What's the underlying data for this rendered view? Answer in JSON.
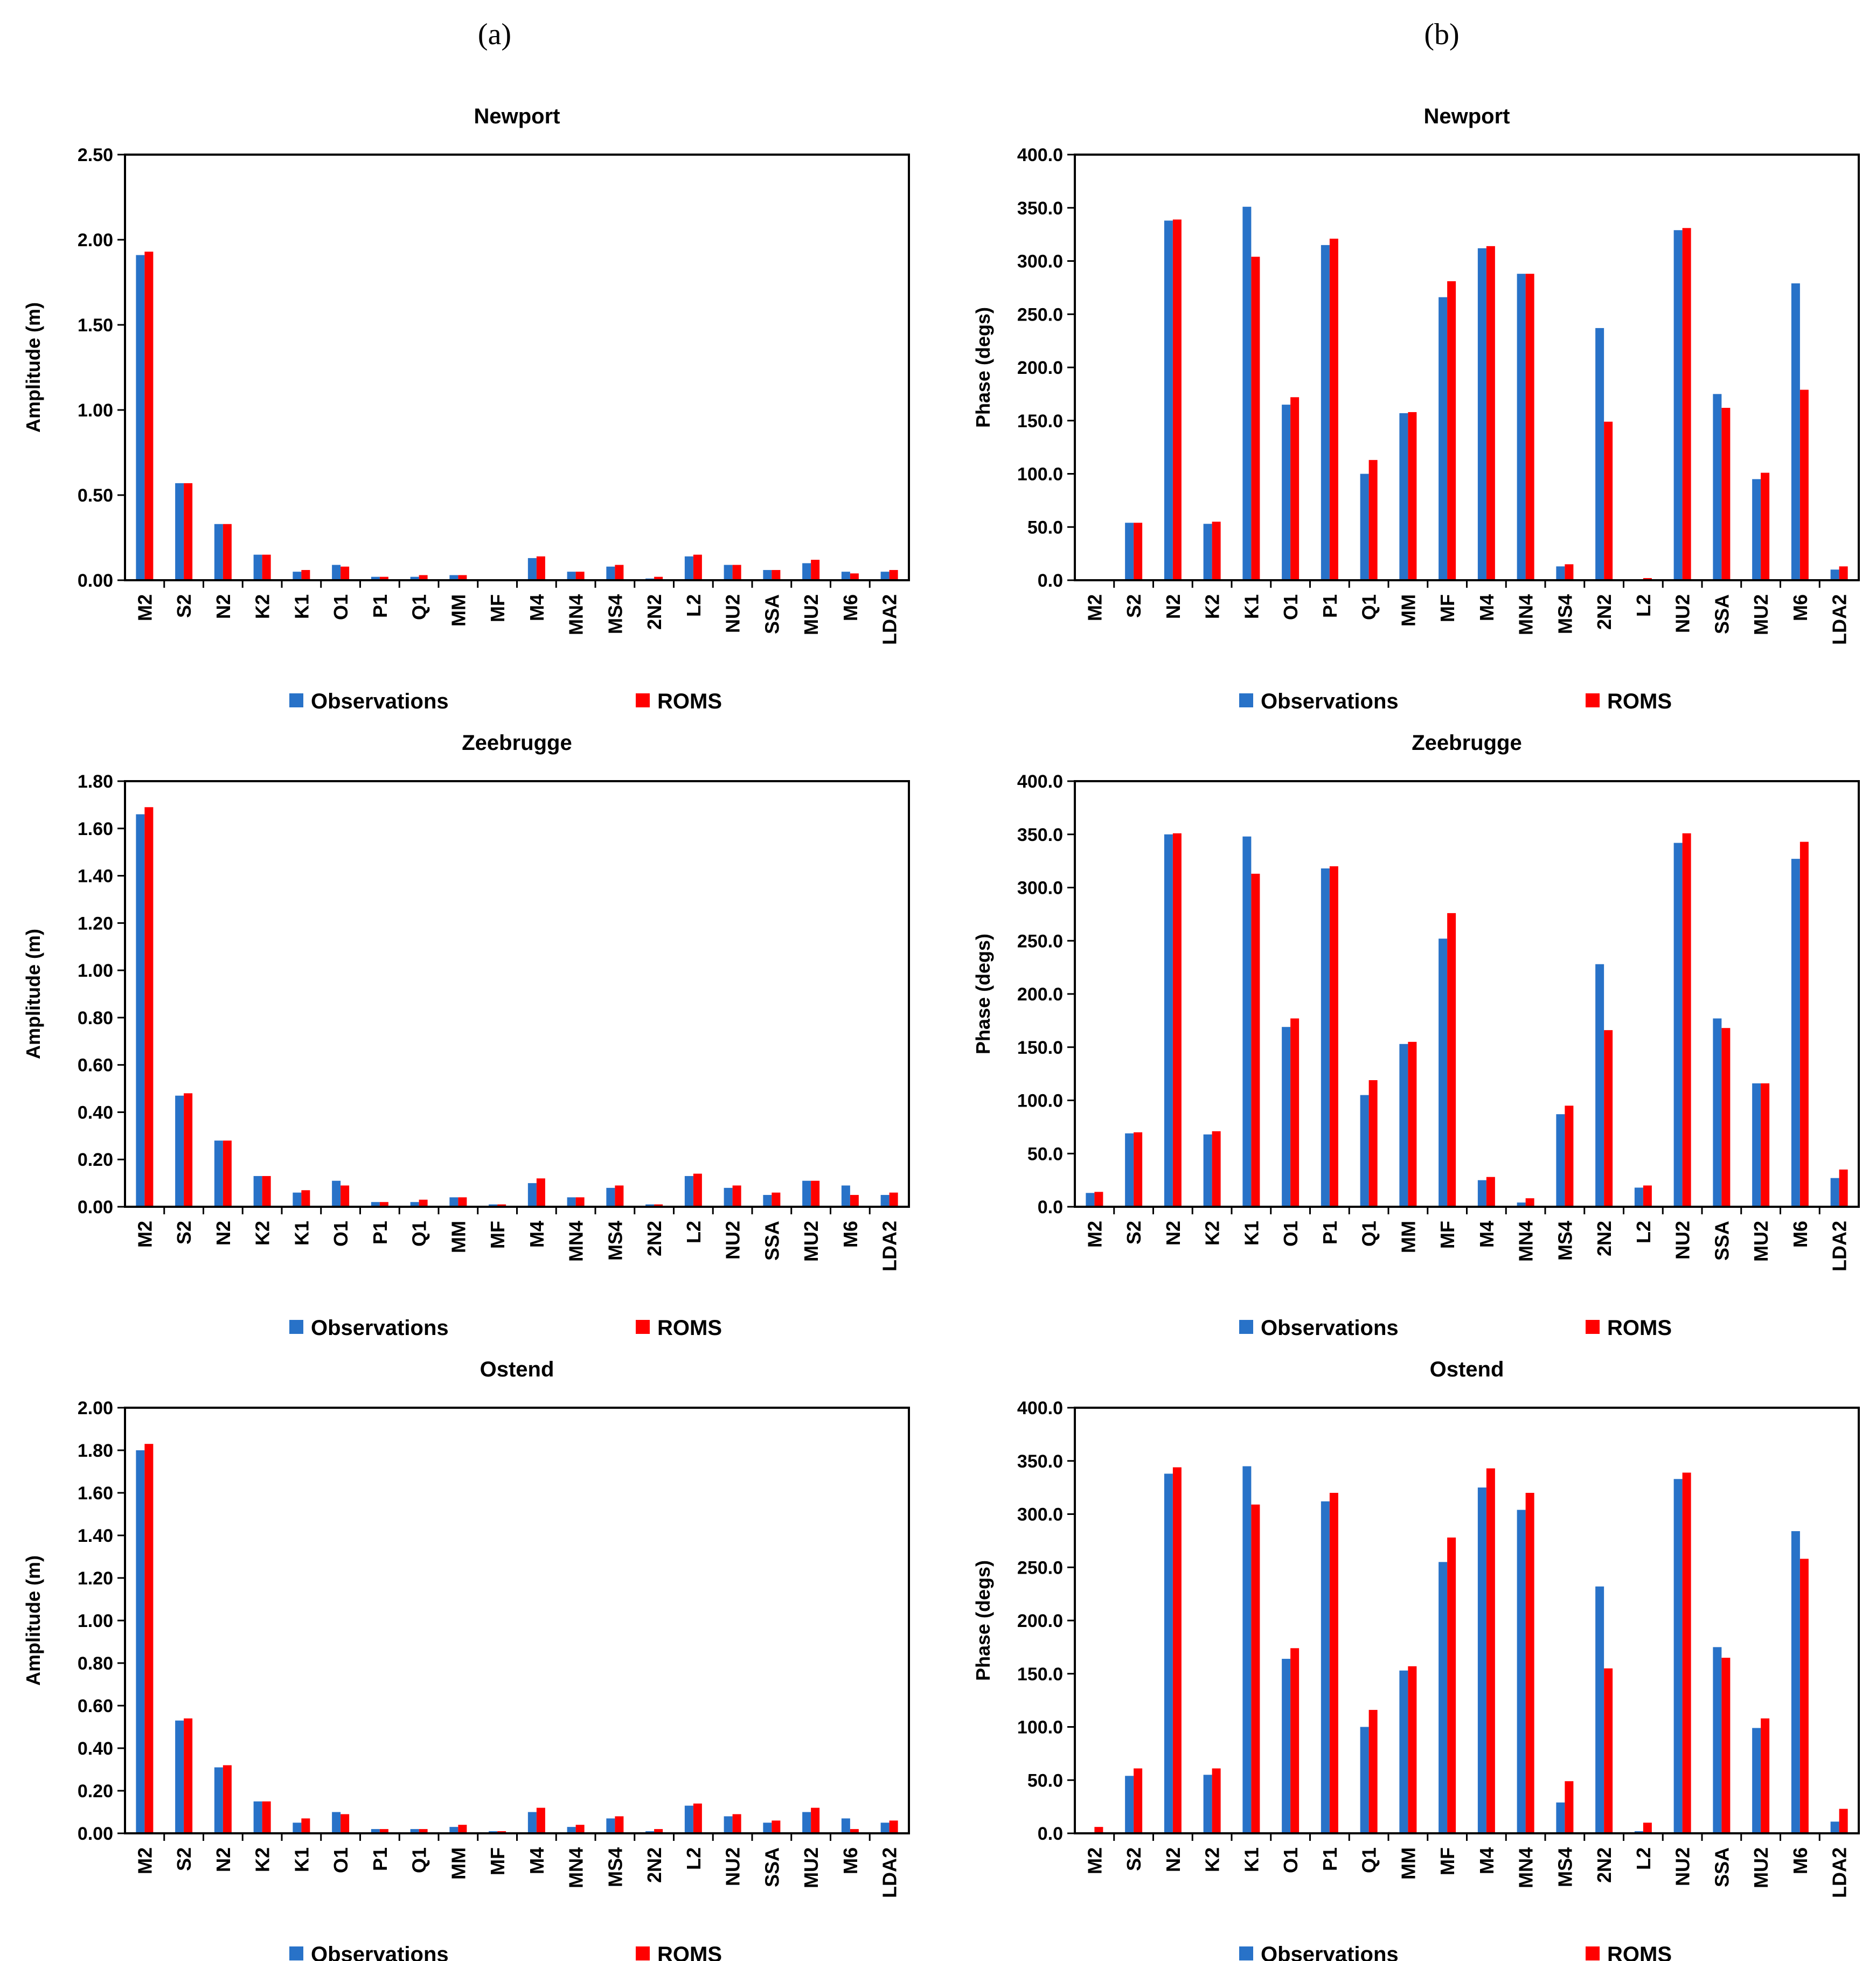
{
  "panel_labels": [
    "(a)",
    "(b)"
  ],
  "colors": {
    "observations": "#2872C8",
    "roms": "#FF0000",
    "axis": "#000000"
  },
  "legend": [
    "Observations",
    "ROMS"
  ],
  "chart_data": [
    {
      "type": "bar",
      "panel": "a",
      "title": "Newport",
      "xlabel": "",
      "ylabel": "Amplitude (m)",
      "ylim": [
        0,
        2.5
      ],
      "ytick_step": 0.5,
      "tick_decimals": 2,
      "categories": [
        "M2",
        "S2",
        "N2",
        "K2",
        "K1",
        "O1",
        "P1",
        "Q1",
        "MM",
        "MF",
        "M4",
        "MN4",
        "MS4",
        "2N2",
        "L2",
        "NU2",
        "SSA",
        "MU2",
        "M6",
        "LDA2"
      ],
      "series": [
        {
          "name": "Observations",
          "values": [
            1.91,
            0.57,
            0.33,
            0.15,
            0.05,
            0.09,
            0.02,
            0.02,
            0.03,
            0.0,
            0.13,
            0.05,
            0.08,
            0.01,
            0.14,
            0.09,
            0.06,
            0.1,
            0.05,
            0.05
          ]
        },
        {
          "name": "ROMS",
          "values": [
            1.93,
            0.57,
            0.33,
            0.15,
            0.06,
            0.08,
            0.02,
            0.03,
            0.03,
            0.0,
            0.14,
            0.05,
            0.09,
            0.02,
            0.15,
            0.09,
            0.06,
            0.12,
            0.04,
            0.06
          ]
        }
      ]
    },
    {
      "type": "bar",
      "panel": "b",
      "title": "Newport",
      "xlabel": "",
      "ylabel": "Phase (degs)",
      "ylim": [
        0,
        400
      ],
      "ytick_step": 50,
      "tick_decimals": 1,
      "categories": [
        "M2",
        "S2",
        "N2",
        "K2",
        "K1",
        "O1",
        "P1",
        "Q1",
        "MM",
        "MF",
        "M4",
        "MN4",
        "MS4",
        "2N2",
        "L2",
        "NU2",
        "SSA",
        "MU2",
        "M6",
        "LDA2"
      ],
      "series": [
        {
          "name": "Observations",
          "values": [
            0,
            54,
            338,
            53,
            351,
            165,
            315,
            100,
            157,
            266,
            312,
            288,
            13,
            237,
            0,
            329,
            175,
            95,
            279,
            10
          ]
        },
        {
          "name": "ROMS",
          "values": [
            0,
            54,
            339,
            55,
            304,
            172,
            321,
            113,
            158,
            281,
            314,
            288,
            15,
            149,
            2,
            331,
            162,
            101,
            179,
            13
          ]
        }
      ]
    },
    {
      "type": "bar",
      "panel": "a",
      "title": "Zeebrugge",
      "xlabel": "",
      "ylabel": "Amplitude (m)",
      "ylim": [
        0,
        1.8
      ],
      "ytick_step": 0.2,
      "tick_decimals": 2,
      "categories": [
        "M2",
        "S2",
        "N2",
        "K2",
        "K1",
        "O1",
        "P1",
        "Q1",
        "MM",
        "MF",
        "M4",
        "MN4",
        "MS4",
        "2N2",
        "L2",
        "NU2",
        "SSA",
        "MU2",
        "M6",
        "LDA2"
      ],
      "series": [
        {
          "name": "Observations",
          "values": [
            1.66,
            0.47,
            0.28,
            0.13,
            0.06,
            0.11,
            0.02,
            0.02,
            0.04,
            0.01,
            0.1,
            0.04,
            0.08,
            0.01,
            0.13,
            0.08,
            0.05,
            0.11,
            0.09,
            0.05
          ]
        },
        {
          "name": "ROMS",
          "values": [
            1.69,
            0.48,
            0.28,
            0.13,
            0.07,
            0.09,
            0.02,
            0.03,
            0.04,
            0.01,
            0.12,
            0.04,
            0.09,
            0.01,
            0.14,
            0.09,
            0.06,
            0.11,
            0.05,
            0.06
          ]
        }
      ]
    },
    {
      "type": "bar",
      "panel": "b",
      "title": "Zeebrugge",
      "xlabel": "",
      "ylabel": "Phase (degs)",
      "ylim": [
        0,
        400
      ],
      "ytick_step": 50,
      "tick_decimals": 1,
      "categories": [
        "M2",
        "S2",
        "N2",
        "K2",
        "K1",
        "O1",
        "P1",
        "Q1",
        "MM",
        "MF",
        "M4",
        "MN4",
        "MS4",
        "2N2",
        "L2",
        "NU2",
        "SSA",
        "MU2",
        "M6",
        "LDA2"
      ],
      "series": [
        {
          "name": "Observations",
          "values": [
            13,
            69,
            350,
            68,
            348,
            169,
            318,
            105,
            153,
            252,
            25,
            4,
            87,
            228,
            18,
            342,
            177,
            116,
            327,
            27
          ]
        },
        {
          "name": "ROMS",
          "values": [
            14,
            70,
            351,
            71,
            313,
            177,
            320,
            119,
            155,
            276,
            28,
            8,
            95,
            166,
            20,
            351,
            168,
            116,
            343,
            35
          ]
        }
      ]
    },
    {
      "type": "bar",
      "panel": "a",
      "title": "Ostend",
      "xlabel": "",
      "ylabel": "Amplitude (m)",
      "ylim": [
        0,
        2.0
      ],
      "ytick_step": 0.2,
      "tick_decimals": 2,
      "categories": [
        "M2",
        "S2",
        "N2",
        "K2",
        "K1",
        "O1",
        "P1",
        "Q1",
        "MM",
        "MF",
        "M4",
        "MN4",
        "MS4",
        "2N2",
        "L2",
        "NU2",
        "SSA",
        "MU2",
        "M6",
        "LDA2"
      ],
      "series": [
        {
          "name": "Observations",
          "values": [
            1.8,
            0.53,
            0.31,
            0.15,
            0.05,
            0.1,
            0.02,
            0.02,
            0.03,
            0.01,
            0.1,
            0.03,
            0.07,
            0.01,
            0.13,
            0.08,
            0.05,
            0.1,
            0.07,
            0.05
          ]
        },
        {
          "name": "ROMS",
          "values": [
            1.83,
            0.54,
            0.32,
            0.15,
            0.07,
            0.09,
            0.02,
            0.02,
            0.04,
            0.01,
            0.12,
            0.04,
            0.08,
            0.02,
            0.14,
            0.09,
            0.06,
            0.12,
            0.02,
            0.06
          ]
        }
      ]
    },
    {
      "type": "bar",
      "panel": "b",
      "title": "Ostend",
      "xlabel": "",
      "ylabel": "Phase (degs)",
      "ylim": [
        0,
        400
      ],
      "ytick_step": 50,
      "tick_decimals": 1,
      "categories": [
        "M2",
        "S2",
        "N2",
        "K2",
        "K1",
        "O1",
        "P1",
        "Q1",
        "MM",
        "MF",
        "M4",
        "MN4",
        "MS4",
        "2N2",
        "L2",
        "NU2",
        "SSA",
        "MU2",
        "M6",
        "LDA2"
      ],
      "series": [
        {
          "name": "Observations",
          "values": [
            0,
            54,
            338,
            55,
            345,
            164,
            312,
            100,
            153,
            255,
            325,
            304,
            29,
            232,
            2,
            333,
            175,
            99,
            284,
            11
          ]
        },
        {
          "name": "ROMS",
          "values": [
            6,
            61,
            344,
            61,
            309,
            174,
            320,
            116,
            157,
            278,
            343,
            320,
            49,
            155,
            10,
            339,
            165,
            108,
            258,
            23
          ]
        }
      ]
    }
  ]
}
